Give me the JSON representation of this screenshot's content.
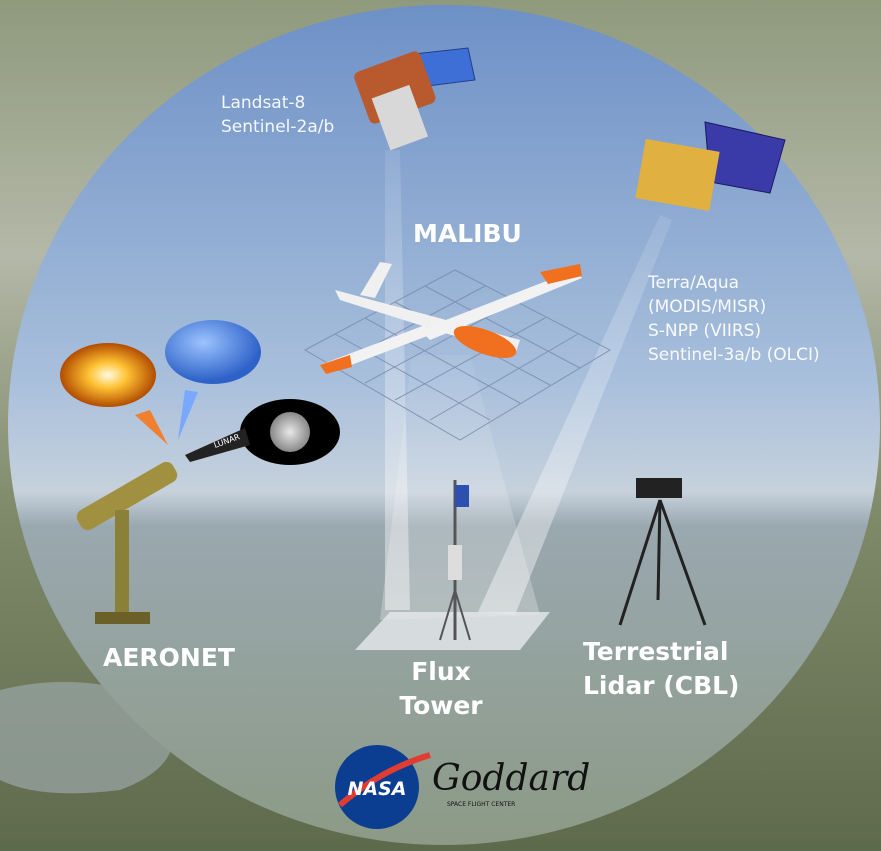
{
  "satellite_high": {
    "lines": [
      "Landsat-8",
      "Sentinel-2a/b"
    ]
  },
  "satellite_low": {
    "lines": [
      "Terra/Aqua",
      "(MODIS/MISR)",
      "S-NPP (VIIRS)",
      "Sentinel-3a/b (OLCI)"
    ]
  },
  "drone": {
    "label": "MALIBU"
  },
  "photometer": {
    "label": "AERONET",
    "moon_tag": "LUNAR"
  },
  "tower": {
    "lines": [
      "Flux",
      "Tower"
    ]
  },
  "lidar": {
    "lines": [
      "Terrestrial",
      "Lidar (CBL)"
    ]
  },
  "logo": {
    "badge": "NASA",
    "script": "Goddard",
    "subtitle": "SPACE FLIGHT CENTER"
  }
}
